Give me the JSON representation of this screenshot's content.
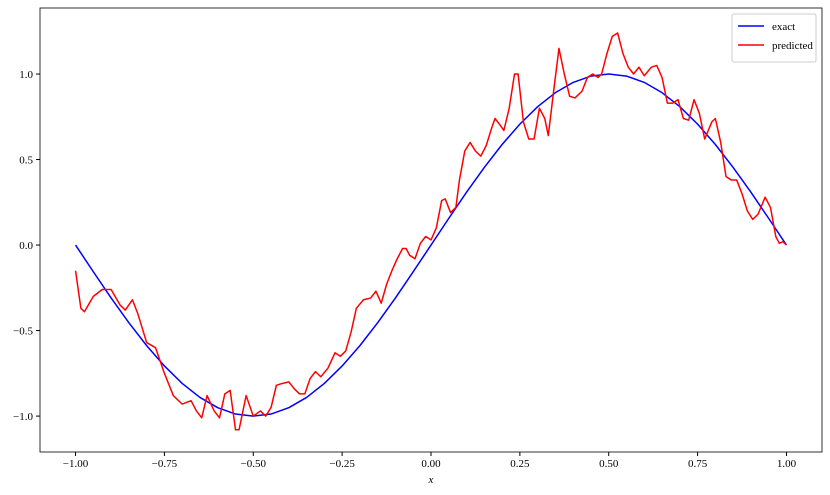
{
  "chart_data": {
    "type": "line",
    "x_label": "x",
    "xlim": [
      -1.1,
      1.1
    ],
    "ylim": [
      -1.21,
      1.386
    ],
    "xticks": [
      {
        "value": -1,
        "label": "−1.00"
      },
      {
        "value": -0.75,
        "label": "−0.75"
      },
      {
        "value": -0.5,
        "label": "−0.50"
      },
      {
        "value": -0.25,
        "label": "−0.25"
      },
      {
        "value": 0,
        "label": "0.00"
      },
      {
        "value": 0.25,
        "label": "0.25"
      },
      {
        "value": 0.5,
        "label": "0.50"
      },
      {
        "value": 0.75,
        "label": "0.75"
      },
      {
        "value": 1,
        "label": "1.00"
      }
    ],
    "yticks": [
      {
        "value": -1,
        "label": "−1.0"
      },
      {
        "value": -0.5,
        "label": "−0.5"
      },
      {
        "value": 0,
        "label": "0.0"
      },
      {
        "value": 0.5,
        "label": "0.5"
      },
      {
        "value": 1,
        "label": "1.0"
      }
    ],
    "legend": "upper right",
    "series": [
      {
        "name": "exact",
        "color": "#0000ff",
        "x": [
          -1,
          -0.95,
          -0.9,
          -0.85,
          -0.8,
          -0.75,
          -0.7,
          -0.65,
          -0.6,
          -0.55,
          -0.5,
          -0.45,
          -0.4,
          -0.35,
          -0.3,
          -0.25,
          -0.2,
          -0.15,
          -0.1,
          -0.05,
          0,
          0.05,
          0.1,
          0.15,
          0.2,
          0.25,
          0.3,
          0.35,
          0.4,
          0.45,
          0.5,
          0.55,
          0.6,
          0.65,
          0.7,
          0.75,
          0.8,
          0.85,
          0.9,
          0.95,
          1
        ],
        "values": [
          0,
          -0.156,
          -0.309,
          -0.454,
          -0.588,
          -0.707,
          -0.809,
          -0.891,
          -0.951,
          -0.988,
          -1,
          -0.988,
          -0.951,
          -0.891,
          -0.809,
          -0.707,
          -0.588,
          -0.454,
          -0.309,
          -0.156,
          0,
          0.156,
          0.309,
          0.454,
          0.588,
          0.707,
          0.809,
          0.891,
          0.951,
          0.988,
          1,
          0.988,
          0.951,
          0.891,
          0.809,
          0.707,
          0.588,
          0.454,
          0.309,
          0.156,
          0
        ]
      },
      {
        "name": "predicted",
        "color": "#ff0000",
        "x": [
          -1,
          -0.985,
          -0.975,
          -0.95,
          -0.925,
          -0.9,
          -0.875,
          -0.86,
          -0.84,
          -0.825,
          -0.8,
          -0.775,
          -0.75,
          -0.725,
          -0.7,
          -0.675,
          -0.66,
          -0.645,
          -0.63,
          -0.61,
          -0.595,
          -0.58,
          -0.565,
          -0.55,
          -0.54,
          -0.52,
          -0.5,
          -0.48,
          -0.465,
          -0.45,
          -0.435,
          -0.42,
          -0.4,
          -0.385,
          -0.37,
          -0.355,
          -0.34,
          -0.325,
          -0.31,
          -0.29,
          -0.27,
          -0.255,
          -0.24,
          -0.225,
          -0.21,
          -0.19,
          -0.17,
          -0.155,
          -0.14,
          -0.125,
          -0.11,
          -0.095,
          -0.08,
          -0.07,
          -0.06,
          -0.045,
          -0.03,
          -0.015,
          0,
          0.015,
          0.03,
          0.04,
          0.055,
          0.07,
          0.08,
          0.095,
          0.11,
          0.125,
          0.14,
          0.155,
          0.17,
          0.18,
          0.195,
          0.205,
          0.22,
          0.235,
          0.245,
          0.26,
          0.275,
          0.29,
          0.305,
          0.32,
          0.33,
          0.345,
          0.36,
          0.375,
          0.39,
          0.405,
          0.425,
          0.44,
          0.455,
          0.47,
          0.48,
          0.495,
          0.51,
          0.525,
          0.54,
          0.555,
          0.57,
          0.585,
          0.6,
          0.62,
          0.635,
          0.65,
          0.665,
          0.68,
          0.695,
          0.71,
          0.725,
          0.74,
          0.755,
          0.77,
          0.79,
          0.8,
          0.815,
          0.83,
          0.845,
          0.86,
          0.875,
          0.89,
          0.905,
          0.92,
          0.94,
          0.955,
          0.97,
          0.98,
          0.99,
          1
        ],
        "values": [
          -0.15,
          -0.37,
          -0.39,
          -0.3,
          -0.26,
          -0.26,
          -0.35,
          -0.38,
          -0.32,
          -0.4,
          -0.57,
          -0.6,
          -0.75,
          -0.88,
          -0.93,
          -0.91,
          -0.97,
          -1.01,
          -0.88,
          -0.97,
          -1.01,
          -0.87,
          -0.85,
          -1.08,
          -1.08,
          -0.88,
          -1,
          -0.97,
          -1,
          -0.95,
          -0.82,
          -0.81,
          -0.8,
          -0.84,
          -0.87,
          -0.87,
          -0.78,
          -0.74,
          -0.77,
          -0.72,
          -0.63,
          -0.65,
          -0.62,
          -0.51,
          -0.37,
          -0.32,
          -0.31,
          -0.27,
          -0.34,
          -0.23,
          -0.15,
          -0.08,
          -0.02,
          -0.02,
          -0.06,
          -0.08,
          0.01,
          0.05,
          0.03,
          0.1,
          0.26,
          0.27,
          0.19,
          0.22,
          0.38,
          0.55,
          0.6,
          0.55,
          0.52,
          0.58,
          0.68,
          0.74,
          0.7,
          0.67,
          0.8,
          1,
          1,
          0.72,
          0.62,
          0.62,
          0.8,
          0.74,
          0.64,
          0.9,
          1.15,
          1,
          0.87,
          0.86,
          0.9,
          0.98,
          1,
          0.98,
          1,
          1.12,
          1.22,
          1.24,
          1.12,
          1.04,
          1,
          1.04,
          0.99,
          1.04,
          1.05,
          0.98,
          0.83,
          0.83,
          0.85,
          0.74,
          0.73,
          0.85,
          0.77,
          0.62,
          0.72,
          0.74,
          0.6,
          0.4,
          0.38,
          0.38,
          0.3,
          0.2,
          0.15,
          0.18,
          0.28,
          0.22,
          0.05,
          0.01,
          0.02,
          0
        ]
      }
    ]
  }
}
